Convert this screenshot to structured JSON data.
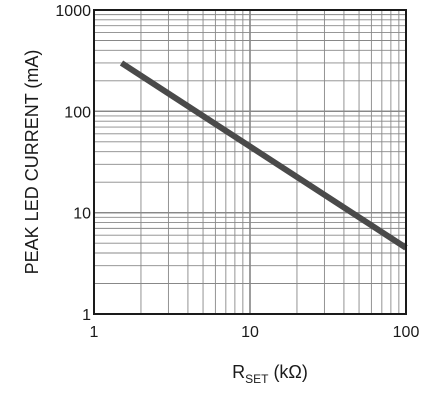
{
  "chart_data": {
    "type": "line",
    "title": "",
    "xlabel": {
      "main": "R",
      "sub": "SET",
      "unit": " (kΩ)"
    },
    "ylabel": "PEAK LED CURRENT (mA)",
    "x_scale": "log",
    "y_scale": "log",
    "xlim": [
      1,
      100
    ],
    "ylim": [
      1,
      1000
    ],
    "x_ticks": [
      1,
      10,
      100
    ],
    "x_tick_labels": [
      "1",
      "10",
      "100"
    ],
    "y_ticks": [
      1,
      10,
      100,
      1000
    ],
    "y_tick_labels": [
      "1",
      "10",
      "100",
      "1000"
    ],
    "grid": true,
    "legend": "none",
    "series": [
      {
        "x": [
          1.5,
          100
        ],
        "y": [
          300,
          4.5
        ]
      }
    ],
    "colors": {
      "line": "#4a4a4a",
      "grid": "#888888",
      "frame": "#1a1a1a"
    }
  }
}
